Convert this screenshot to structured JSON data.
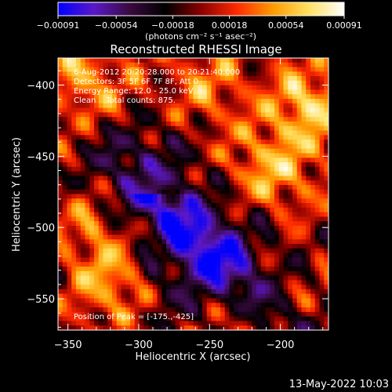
{
  "chart_data": {
    "type": "heatmap",
    "title": "Reconstructed RHESSI Image",
    "xlabel": "Heliocentric X (arcsec)",
    "ylabel": "Heliocentric Y (arcsec)",
    "xlim": [
      -357,
      -166
    ],
    "ylim": [
      -572,
      -381
    ],
    "x_ticks": [
      -350,
      -300,
      -250,
      -200
    ],
    "y_ticks": [
      -400,
      -450,
      -500,
      -550
    ],
    "colorbar": {
      "ticks": [
        "-0.00091",
        "-0.00054",
        "-0.00018",
        "0.00018",
        "0.00054",
        "0.00091"
      ],
      "range": [
        -0.00091,
        0.00091
      ],
      "unit_label": "(photons cm⁻² s⁻¹ asec⁻²)",
      "colors": [
        "#0000ff",
        "#5a18c8",
        "#3a0a40",
        "#000000",
        "#8a0000",
        "#ff2a00",
        "#ff9a00",
        "#ffe060",
        "#ffffff"
      ]
    },
    "annotations": [
      "6-Aug-2012 20:20:28.000 to 20:21:40.000",
      "Detectors: 3F 5F 6F 7F 8F, Att 0",
      "Energy Range: 12.0 - 25.0 keV",
      "Clean    Total counts: 875.",
      "Position of Peak = [-175.,-425]"
    ],
    "peak_position": [
      -175,
      -425
    ],
    "grid": false,
    "legend": "none"
  },
  "footer": {
    "date": "13-May-2022 10:03"
  }
}
